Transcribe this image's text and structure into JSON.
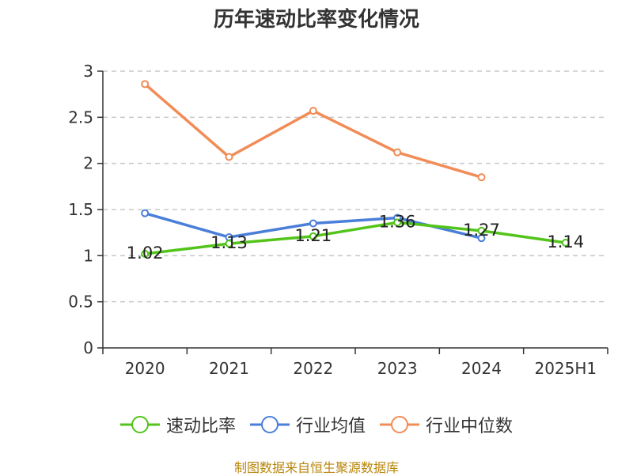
{
  "title": "历年速动比率变化情况",
  "source": "制图数据来自恒生聚源数据库",
  "chart_data": {
    "type": "line",
    "title": "历年速动比率变化情况",
    "categories": [
      "2020",
      "2021",
      "2022",
      "2023",
      "2024",
      "2025H1"
    ],
    "ylim": [
      0,
      3
    ],
    "yticks": [
      0,
      0.5,
      1,
      1.5,
      2,
      2.5,
      3
    ],
    "ytick_labels": [
      "0",
      "0.5",
      "1",
      "1.5",
      "2",
      "2.5",
      "3"
    ],
    "grid": true,
    "legend_position": "bottom",
    "series": [
      {
        "name": "速动比率",
        "color": "#52c41a",
        "values": [
          1.02,
          1.13,
          1.21,
          1.36,
          1.27,
          1.14
        ],
        "labels": [
          "1.02",
          "1.13",
          "1.21",
          "1.36",
          "1.27",
          "1.14"
        ]
      },
      {
        "name": "行业均值",
        "color": "#4a7fd9",
        "values": [
          1.46,
          1.2,
          1.35,
          1.41,
          1.19,
          null
        ]
      },
      {
        "name": "行业中位数",
        "color": "#f28c56",
        "values": [
          2.86,
          2.07,
          2.57,
          2.12,
          1.85,
          null
        ]
      }
    ]
  }
}
